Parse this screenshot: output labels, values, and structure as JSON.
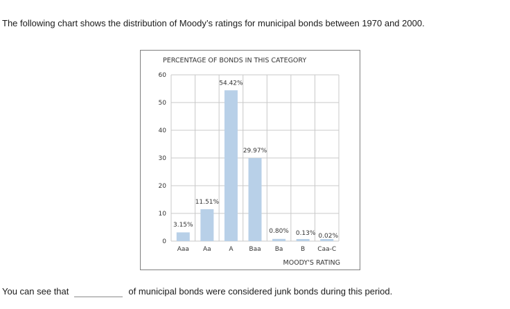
{
  "intro": "The following chart shows the distribution of Moody’s ratings for municipal bonds between 1970 and 2000.",
  "question": {
    "prefix": "You can see that",
    "blank_value": "",
    "suffix": "of municipal bonds were considered junk bonds during this period."
  },
  "chart_data": {
    "type": "bar",
    "title": "PERCENTAGE OF BONDS IN THIS CATEGORY",
    "xlabel": "MOODY'S RATING",
    "ylabel": "",
    "categories": [
      "Aaa",
      "Aa",
      "A",
      "Baa",
      "Ba",
      "B",
      "Caa-C"
    ],
    "values": [
      3.15,
      11.51,
      54.42,
      29.97,
      0.8,
      0.13,
      0.02
    ],
    "value_labels": [
      "3.15%",
      "11.51%",
      "54.42%",
      "29.97%",
      "0.80%",
      "0.13%",
      "0.02%"
    ],
    "ylim": [
      0,
      60
    ],
    "yticks": [
      0,
      10,
      20,
      30,
      40,
      50,
      60
    ],
    "grid": true,
    "bar_color": "#b8d0e8",
    "grid_color": "#c8c8c8"
  }
}
